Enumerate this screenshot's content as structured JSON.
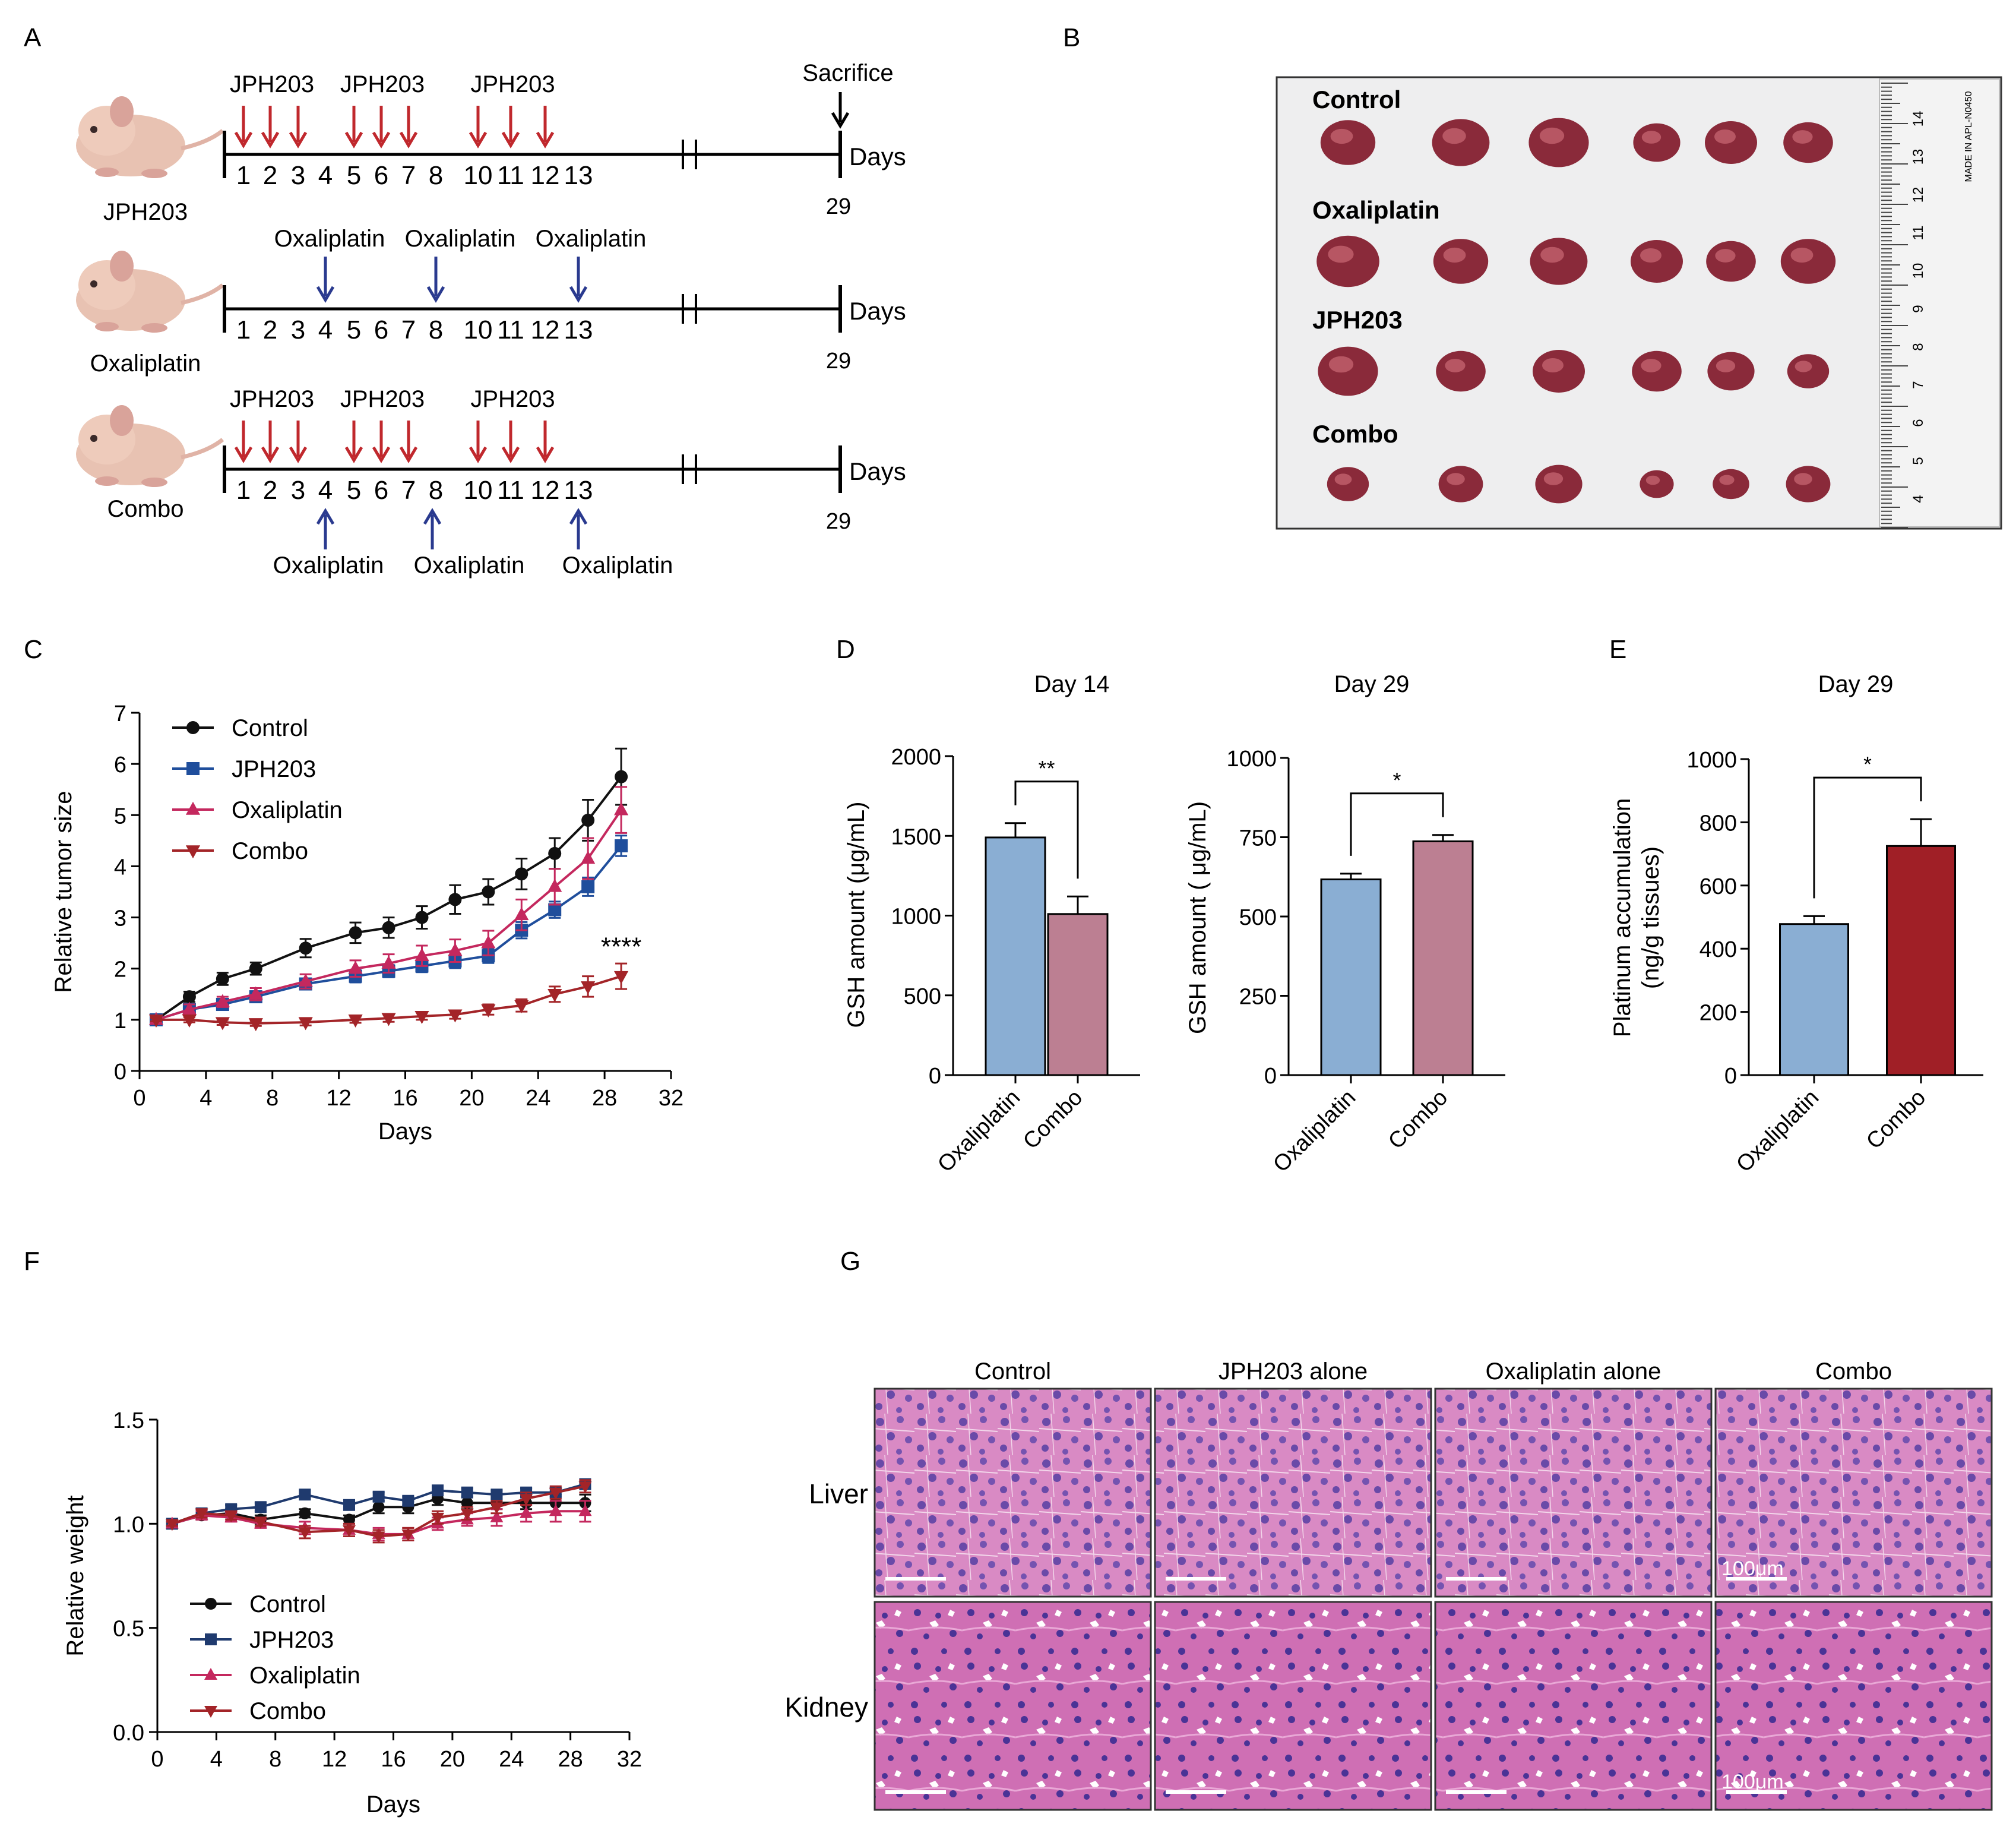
{
  "panel_labels": {
    "a": "A",
    "b": "B",
    "c": "C",
    "d": "D",
    "e": "E",
    "f": "F",
    "g": "G"
  },
  "panel_a": {
    "day_numbers": [
      "1",
      "2",
      "3",
      "4",
      "5",
      "6",
      "7",
      "8",
      "10",
      "11",
      "12",
      "13"
    ],
    "days_label": "Days",
    "end_day": "29",
    "sacrifice_label": "Sacrifice",
    "jph_label": "JPH203",
    "oxa_label": "Oxaliplatin",
    "rows": [
      {
        "group": "JPH203"
      },
      {
        "group": "Oxaliplatin"
      },
      {
        "group": "Combo"
      }
    ],
    "colors": {
      "jph_arrow": "#c0282d",
      "oxa_arrow": "#2a3a8f"
    }
  },
  "panel_b": {
    "groups": [
      "Control",
      "Oxaliplatin",
      "JPH203",
      "Combo"
    ],
    "ruler_numbers": [
      "14",
      "13",
      "12",
      "11",
      "10",
      "9",
      "8",
      "7",
      "6",
      "5",
      "4"
    ],
    "ruler_text": "MADE IN   APL-N0450"
  },
  "panel_c": {
    "chart_data": {
      "type": "line",
      "title": "",
      "xlabel": "Days",
      "ylabel": "Relative tumor size",
      "xlim": [
        0,
        32
      ],
      "ylim": [
        0,
        7
      ],
      "x_ticks": [
        "0",
        "4",
        "8",
        "12",
        "16",
        "20",
        "24",
        "28",
        "32"
      ],
      "y_ticks": [
        "0",
        "1",
        "2",
        "3",
        "4",
        "5",
        "6",
        "7"
      ],
      "annotation": "****",
      "series": [
        {
          "name": "Control",
          "marker": "circle",
          "color": "#111111",
          "x": [
            1,
            3,
            5,
            7,
            10,
            13,
            15,
            17,
            19,
            21,
            23,
            25,
            27,
            29
          ],
          "y": [
            1.0,
            1.45,
            1.8,
            2.0,
            2.4,
            2.7,
            2.8,
            3.0,
            3.35,
            3.5,
            3.85,
            4.25,
            4.9,
            5.75
          ],
          "err": [
            0.05,
            0.1,
            0.12,
            0.12,
            0.18,
            0.2,
            0.2,
            0.22,
            0.28,
            0.25,
            0.3,
            0.3,
            0.4,
            0.55
          ]
        },
        {
          "name": "JPH203",
          "marker": "square",
          "color": "#1f4e9c",
          "x": [
            1,
            3,
            5,
            7,
            10,
            13,
            15,
            17,
            19,
            21,
            23,
            25,
            27,
            29
          ],
          "y": [
            1.0,
            1.2,
            1.3,
            1.45,
            1.7,
            1.85,
            1.95,
            2.05,
            2.15,
            2.25,
            2.75,
            3.15,
            3.6,
            4.4
          ],
          "err": [
            0.05,
            0.08,
            0.08,
            0.1,
            0.1,
            0.12,
            0.12,
            0.12,
            0.14,
            0.14,
            0.16,
            0.16,
            0.18,
            0.2
          ]
        },
        {
          "name": "Oxaliplatin",
          "marker": "triangle-up",
          "color": "#c4285e",
          "x": [
            1,
            3,
            5,
            7,
            10,
            13,
            15,
            17,
            19,
            21,
            23,
            25,
            27,
            29
          ],
          "y": [
            1.0,
            1.2,
            1.35,
            1.5,
            1.75,
            2.0,
            2.1,
            2.25,
            2.35,
            2.5,
            3.05,
            3.6,
            4.15,
            5.1
          ],
          "err": [
            0.05,
            0.1,
            0.1,
            0.12,
            0.14,
            0.16,
            0.18,
            0.2,
            0.22,
            0.24,
            0.3,
            0.35,
            0.4,
            0.45
          ]
        },
        {
          "name": "Combo",
          "marker": "triangle-down",
          "color": "#a32428",
          "x": [
            1,
            3,
            5,
            7,
            10,
            13,
            15,
            17,
            19,
            21,
            23,
            25,
            27,
            29
          ],
          "y": [
            1.0,
            1.0,
            0.95,
            0.93,
            0.95,
            1.0,
            1.03,
            1.07,
            1.1,
            1.2,
            1.28,
            1.5,
            1.65,
            1.85
          ],
          "err": [
            0.03,
            0.05,
            0.05,
            0.05,
            0.06,
            0.06,
            0.07,
            0.07,
            0.08,
            0.1,
            0.12,
            0.15,
            0.2,
            0.25
          ]
        }
      ]
    }
  },
  "panel_d": {
    "charts": [
      {
        "type": "bar",
        "title": "Day 14",
        "ylabel": "GSH amount (μg/mL)",
        "categories": [
          "Oxaliplatin",
          "Combo"
        ],
        "values": [
          1490,
          1010
        ],
        "err": [
          90,
          110
        ],
        "colors": [
          "#8aaed3",
          "#bc7f92"
        ],
        "ylim": [
          0,
          2000
        ],
        "y_ticks": [
          "0",
          "500",
          "1000",
          "1500",
          "2000"
        ],
        "sig": "**"
      },
      {
        "type": "bar",
        "title": "Day 29",
        "ylabel": "GSH amount ( μg/mL)",
        "categories": [
          "Oxaliplatin",
          "Combo"
        ],
        "values": [
          617,
          737
        ],
        "err": [
          18,
          20
        ],
        "colors": [
          "#8aaed3",
          "#bc7f92"
        ],
        "ylim": [
          0,
          1000
        ],
        "y_ticks": [
          "0",
          "250",
          "500",
          "750",
          "1000"
        ],
        "sig": "*"
      }
    ]
  },
  "panel_e": {
    "chart_data": {
      "type": "bar",
      "title": "Day 29",
      "ylabel_line1": "Platinum accumulation",
      "ylabel_line2": "(ng/g tissues)",
      "categories": [
        "Oxaliplatin",
        "Combo"
      ],
      "values": [
        478,
        725
      ],
      "err": [
        25,
        85
      ],
      "colors": [
        "#8aaed3",
        "#a01f26"
      ],
      "ylim": [
        0,
        1000
      ],
      "y_ticks": [
        "0",
        "200",
        "400",
        "600",
        "800",
        "1000"
      ],
      "sig": "*"
    }
  },
  "panel_f": {
    "chart_data": {
      "type": "line",
      "xlabel": "Days",
      "ylabel": "Relative weight",
      "xlim": [
        0,
        32
      ],
      "ylim": [
        0,
        1.5
      ],
      "x_ticks": [
        "0",
        "4",
        "8",
        "12",
        "16",
        "20",
        "24",
        "28",
        "32"
      ],
      "y_ticks": [
        "0.0",
        "0.5",
        "1.0",
        "1.5"
      ],
      "series": [
        {
          "name": "Control",
          "marker": "circle",
          "color": "#111111",
          "x": [
            1,
            3,
            5,
            7,
            10,
            13,
            15,
            17,
            19,
            21,
            23,
            25,
            27,
            29
          ],
          "y": [
            1.0,
            1.04,
            1.05,
            1.02,
            1.05,
            1.02,
            1.08,
            1.08,
            1.12,
            1.1,
            1.1,
            1.1,
            1.1,
            1.1
          ],
          "err": [
            0.01,
            0.02,
            0.02,
            0.02,
            0.02,
            0.02,
            0.03,
            0.03,
            0.03,
            0.03,
            0.03,
            0.03,
            0.04,
            0.04
          ]
        },
        {
          "name": "JPH203",
          "marker": "square",
          "color": "#1f3a6e",
          "x": [
            1,
            3,
            5,
            7,
            10,
            13,
            15,
            17,
            19,
            21,
            23,
            25,
            27,
            29
          ],
          "y": [
            1.0,
            1.05,
            1.07,
            1.08,
            1.14,
            1.09,
            1.13,
            1.11,
            1.16,
            1.15,
            1.14,
            1.15,
            1.15,
            1.19
          ],
          "err": [
            0.01,
            0.02,
            0.02,
            0.02,
            0.02,
            0.02,
            0.02,
            0.02,
            0.02,
            0.02,
            0.02,
            0.02,
            0.02,
            0.02
          ]
        },
        {
          "name": "Oxaliplatin",
          "marker": "triangle-up",
          "color": "#c4285e",
          "x": [
            1,
            3,
            5,
            7,
            10,
            13,
            15,
            17,
            19,
            21,
            23,
            25,
            27,
            29
          ],
          "y": [
            1.0,
            1.04,
            1.03,
            1.0,
            0.98,
            0.97,
            0.95,
            0.95,
            1.0,
            1.02,
            1.03,
            1.05,
            1.06,
            1.06
          ],
          "err": [
            0.01,
            0.02,
            0.02,
            0.02,
            0.03,
            0.03,
            0.03,
            0.03,
            0.03,
            0.03,
            0.04,
            0.04,
            0.05,
            0.05
          ]
        },
        {
          "name": "Combo",
          "marker": "triangle-down",
          "color": "#a32428",
          "x": [
            1,
            3,
            5,
            7,
            10,
            13,
            15,
            17,
            19,
            21,
            23,
            25,
            27,
            29
          ],
          "y": [
            1.0,
            1.05,
            1.04,
            1.01,
            0.96,
            0.97,
            0.94,
            0.95,
            1.03,
            1.05,
            1.08,
            1.12,
            1.15,
            1.18
          ],
          "err": [
            0.01,
            0.02,
            0.02,
            0.02,
            0.03,
            0.03,
            0.03,
            0.03,
            0.03,
            0.03,
            0.03,
            0.03,
            0.03,
            0.03
          ]
        }
      ]
    }
  },
  "panel_g": {
    "columns": [
      "Control",
      "JPH203 alone",
      "Oxaliplatin alone",
      "Combo"
    ],
    "rows": [
      "Liver",
      "Kidney"
    ],
    "scale_label": "100μm",
    "colors": {
      "tissue": "#d97fbe",
      "nuclei": "#5a3d9e",
      "lumen": "#ffffff"
    }
  }
}
